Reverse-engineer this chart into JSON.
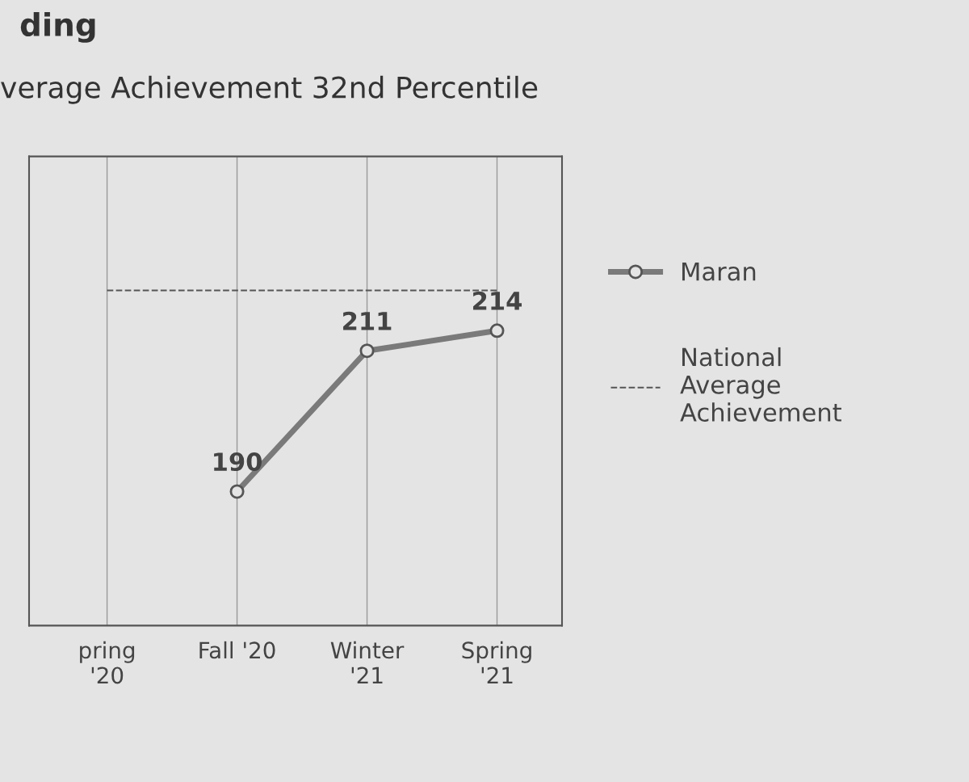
{
  "chart_data": {
    "type": "line",
    "title": "ding",
    "subtitle": "verage Achievement 32nd Percentile",
    "categories": [
      "pring\n'20",
      "Fall '20",
      "Winter\n'21",
      "Spring\n'21"
    ],
    "series": [
      {
        "name": "Maran",
        "color": "#7a7a7a",
        "values": [
          null,
          190,
          211,
          214
        ],
        "value_labels": [
          null,
          "190",
          "211",
          "214"
        ],
        "marker": "circle",
        "line_style": "solid"
      },
      {
        "name": "National\nAverage\nAchievement",
        "color": "#555555",
        "values": [
          220,
          220,
          220,
          220
        ],
        "marker": "none",
        "line_style": "dashed"
      }
    ],
    "ylim": [
      170,
      240
    ],
    "tick_labels": "x",
    "grid": "x",
    "legend": "right"
  }
}
